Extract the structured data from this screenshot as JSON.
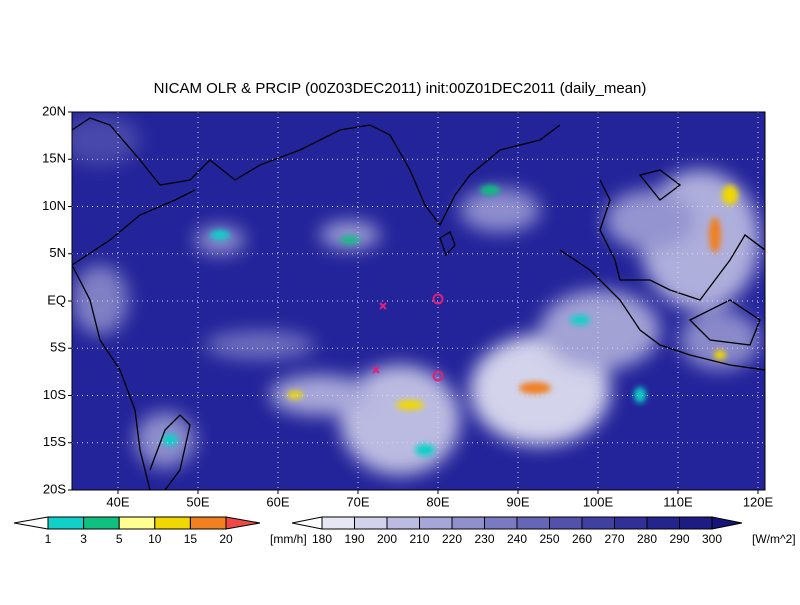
{
  "title": "NICAM OLR & PRCIP (00Z03DEC2011) init:00Z01DEC2011 (daily_mean)",
  "lat_labels": [
    "20N",
    "15N",
    "10N",
    "5N",
    "EQ",
    "5S",
    "10S",
    "15S",
    "20S"
  ],
  "lon_labels": [
    "40E",
    "50E",
    "60E",
    "70E",
    "80E",
    "90E",
    "100E",
    "110E",
    "120E"
  ],
  "precip_legend": {
    "labels": [
      1,
      3,
      5,
      10,
      15,
      20
    ],
    "unit": "[mm/h]",
    "colors": [
      "#ffffff",
      "#10d0c8",
      "#10c080",
      "#ffff90",
      "#f0d800",
      "#f08020",
      "#f04848"
    ]
  },
  "olr_legend": {
    "labels": [
      180,
      190,
      200,
      210,
      220,
      230,
      240,
      250,
      260,
      270,
      280,
      290,
      300
    ],
    "unit": "[W/m^2]",
    "colors": [
      "#ffffff",
      "#e6e6f4",
      "#d2d2ec",
      "#bcbce2",
      "#a6a6d8",
      "#9090cc",
      "#7a7ac2",
      "#6666b8",
      "#5252ac",
      "#4040a2",
      "#303098",
      "#24248e",
      "#1c1c84",
      "#14147a"
    ]
  }
}
